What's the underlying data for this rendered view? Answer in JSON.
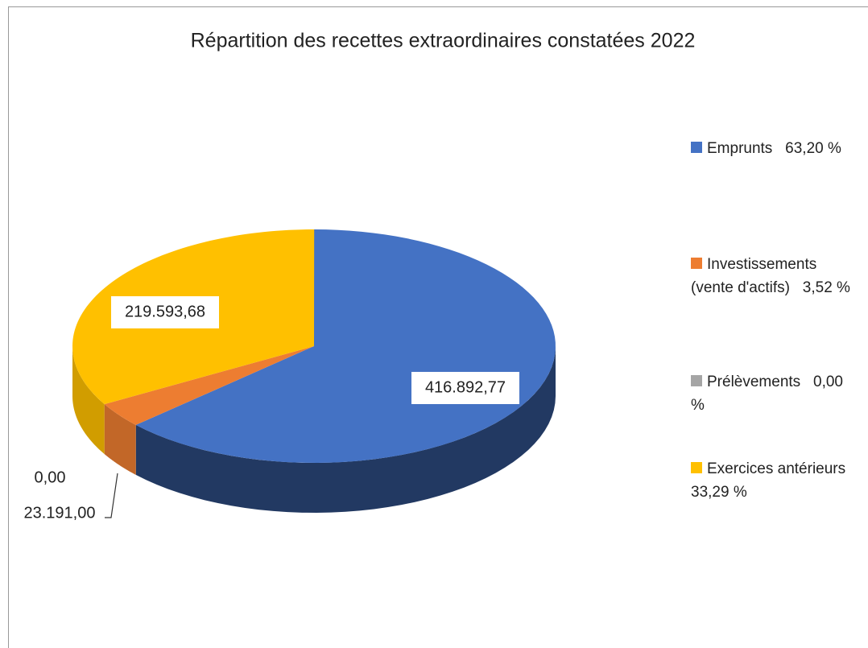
{
  "chart_data": {
    "type": "pie3d",
    "title": "Répartition des recettes extraordinaires constatées 2022",
    "categories": [
      "Emprunts",
      "Investissements (vente d'actifs)",
      "Prélèvements",
      "Exercices antérieurs"
    ],
    "values": [
      416892.77,
      23191.0,
      0,
      219593.68
    ],
    "value_labels": [
      "416.892,77",
      "23.191,00",
      "0,00",
      "219.593,68"
    ],
    "percents": [
      63.2,
      3.52,
      0.0,
      33.29
    ],
    "percent_labels": [
      "63,20 %",
      "3,52 %",
      "0,00 %",
      "33,29 %"
    ],
    "colors": [
      "#4472c4",
      "#ed7d31",
      "#a5a5a5",
      "#ffc000"
    ],
    "legend": "right"
  }
}
